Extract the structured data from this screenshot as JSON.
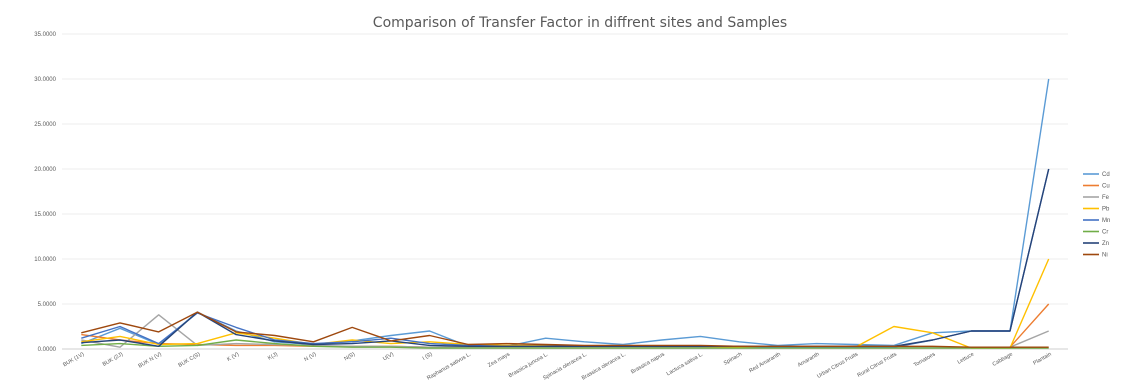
{
  "chart_data": {
    "type": "line",
    "title": "Comparison of Transfer Factor in diffrent sites and Samples",
    "xlabel": "",
    "ylabel": "",
    "ylim": [
      0,
      35
    ],
    "yticks": [
      0,
      5,
      10,
      15,
      20,
      25,
      30,
      35
    ],
    "ytick_labels": [
      "0.0000",
      "5.0000",
      "10.0000",
      "15.0000",
      "20.0000",
      "25.0000",
      "30.0000",
      "35.0000"
    ],
    "grid": true,
    "legend_position": "right",
    "categories": [
      "BUK (1V)",
      "BUK (2J)",
      "BUK N (V)",
      "BUK C(S)",
      "K (V)",
      "K(J)",
      "N (V)",
      "N(S)",
      "U(V)",
      "I (S)",
      "Raphanus sativus L.",
      "Zea mays",
      "Brassica juncea L.",
      "Spinacia oleracea L.",
      "Brassica oleracea L.",
      "Brassica napus",
      "Lactuca sativa L.",
      "Spinach",
      "Red Amaranth",
      "Amaranth",
      "Urban Citrus Fruits",
      "Rural Citrus Fruits",
      "Tomatoes",
      "Lettuce",
      "Cabbage",
      "Plantain"
    ],
    "series": [
      {
        "name": "Cd",
        "color": "#5b9bd5",
        "values": [
          0.6,
          2.3,
          0.5,
          4.1,
          2.0,
          0.8,
          0.5,
          0.9,
          1.5,
          2.0,
          0.3,
          0.3,
          1.2,
          0.8,
          0.5,
          1.0,
          1.4,
          0.8,
          0.4,
          0.6,
          0.5,
          0.4,
          1.8,
          2.0,
          2.0,
          30.0
        ]
      },
      {
        "name": "Cu",
        "color": "#ed7d31",
        "values": [
          1.6,
          1.0,
          0.6,
          0.5,
          0.4,
          0.4,
          0.3,
          0.3,
          0.3,
          0.2,
          0.2,
          0.2,
          0.2,
          0.2,
          0.2,
          0.2,
          0.2,
          0.2,
          0.2,
          0.2,
          0.2,
          0.2,
          0.2,
          0.2,
          0.2,
          5.0
        ]
      },
      {
        "name": "Fe",
        "color": "#a5a5a5",
        "values": [
          1.0,
          0.2,
          3.8,
          0.4,
          0.6,
          0.5,
          0.4,
          0.3,
          0.3,
          0.2,
          0.2,
          0.2,
          0.2,
          0.2,
          0.2,
          0.2,
          0.2,
          0.2,
          0.2,
          0.2,
          0.2,
          0.2,
          0.2,
          0.2,
          0.2,
          2.0
        ]
      },
      {
        "name": "Pb",
        "color": "#ffc000",
        "values": [
          0.8,
          1.4,
          0.5,
          0.6,
          1.8,
          1.2,
          0.5,
          1.0,
          0.6,
          0.8,
          0.5,
          0.4,
          0.4,
          0.3,
          0.3,
          0.3,
          0.3,
          0.2,
          0.2,
          0.2,
          0.2,
          2.5,
          1.8,
          0.1,
          0.1,
          10.0
        ]
      },
      {
        "name": "Mn",
        "color": "#4472c4",
        "values": [
          1.2,
          2.5,
          0.6,
          4.0,
          2.4,
          1.0,
          0.6,
          0.8,
          1.2,
          0.6,
          0.4,
          0.3,
          0.3,
          0.3,
          0.3,
          0.3,
          0.3,
          0.3,
          0.2,
          0.2,
          0.2,
          0.2,
          1.0,
          2.0,
          2.0,
          20.0
        ]
      },
      {
        "name": "Cr",
        "color": "#70ad47",
        "values": [
          0.4,
          0.6,
          0.3,
          0.4,
          1.0,
          0.6,
          0.3,
          0.2,
          0.2,
          0.1,
          0.1,
          0.1,
          0.1,
          0.1,
          0.1,
          0.1,
          0.1,
          0.1,
          0.1,
          0.1,
          0.1,
          0.1,
          0.1,
          0.1,
          0.1,
          0.1
        ]
      },
      {
        "name": "Zn",
        "color": "#264478",
        "values": [
          0.7,
          1.0,
          0.3,
          4.1,
          1.6,
          0.9,
          0.5,
          0.6,
          0.9,
          0.4,
          0.3,
          0.3,
          0.3,
          0.3,
          0.3,
          0.3,
          0.3,
          0.3,
          0.3,
          0.3,
          0.3,
          0.3,
          1.0,
          2.0,
          2.0,
          20.0
        ]
      },
      {
        "name": "Ni",
        "color": "#9e480e",
        "values": [
          1.8,
          2.9,
          1.9,
          4.1,
          1.9,
          1.5,
          0.8,
          2.4,
          0.9,
          1.5,
          0.5,
          0.6,
          0.5,
          0.4,
          0.4,
          0.4,
          0.4,
          0.3,
          0.3,
          0.3,
          0.3,
          0.3,
          0.3,
          0.2,
          0.2,
          0.2
        ]
      }
    ]
  }
}
